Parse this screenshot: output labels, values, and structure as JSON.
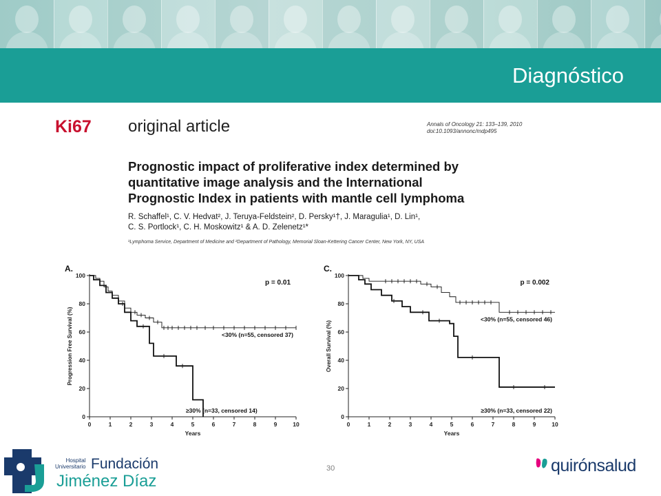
{
  "header": {
    "title": "Diagnóstico"
  },
  "section_label": "Ki67",
  "article": {
    "kicker": "original article",
    "journal_line1": "Annals of Oncology 21: 133–139, 2010",
    "journal_line2": "doi:10.1093/annonc/mdp495",
    "title_lines": [
      "Prognostic impact of proliferative index determined by",
      "quantitative image analysis and the International",
      "Prognostic Index in patients with mantle cell lymphoma"
    ],
    "authors_line1": "R. Schaffel¹, C. V. Hedvat², J. Teruya-Feldstein², D. Persky¹†, J. Maragulia¹, D. Lin¹,",
    "authors_line2": "C. S. Portlock¹, C. H. Moskowitz¹ & A. D. Zelenetz¹*",
    "affiliation": "¹Lymphoma Service, Department of Medicine and ²Department of Pathology, Memorial Sloan-Kettering Cancer Center, New York, NY, USA"
  },
  "chart_data": [
    {
      "type": "line",
      "panel": "A.",
      "p_value": "p = 0.01",
      "xlabel": "Years",
      "ylabel": "Progression Free Survival (%)",
      "xlim": [
        0,
        10
      ],
      "ylim": [
        0,
        100
      ],
      "xticks": [
        "0",
        "1",
        "2",
        "3",
        "4",
        "5",
        "6",
        "7",
        "8",
        "9",
        "10"
      ],
      "yticks": [
        "0",
        "20",
        "40",
        "60",
        "80",
        "100"
      ],
      "series": [
        {
          "name": "<30% (n=55, censored 37)",
          "style": "thin",
          "x": [
            0,
            0.3,
            0.5,
            0.7,
            0.9,
            1.1,
            1.4,
            1.7,
            2.0,
            2.3,
            2.7,
            3.1,
            3.5,
            10
          ],
          "y": [
            100,
            98,
            96,
            92,
            89,
            86,
            82,
            77,
            74,
            72,
            70,
            67,
            63,
            63
          ],
          "censor_x": [
            2.2,
            2.5,
            2.9,
            3.3,
            3.6,
            3.8,
            4.0,
            4.3,
            4.6,
            4.9,
            5.2,
            5.6,
            6.0,
            6.5,
            7.0,
            7.5,
            8.0,
            8.5,
            9.0,
            9.5,
            10.0
          ]
        },
        {
          "name": "≥30% (n=33, censored 14)",
          "style": "thick",
          "x": [
            0,
            0.2,
            0.5,
            0.8,
            1.1,
            1.4,
            1.7,
            2.0,
            2.3,
            2.9,
            3.1,
            4.2,
            5.0,
            5.5
          ],
          "y": [
            100,
            97,
            93,
            88,
            84,
            80,
            74,
            68,
            64,
            52,
            43,
            36,
            12,
            0
          ],
          "censor_x": [
            1.6,
            2.6,
            3.6,
            4.5
          ]
        }
      ]
    },
    {
      "type": "line",
      "panel": "C.",
      "p_value": "p = 0.002",
      "xlabel": "Years",
      "ylabel": "Overall Survival (%)",
      "xlim": [
        0,
        10
      ],
      "ylim": [
        0,
        100
      ],
      "xticks": [
        "0",
        "1",
        "2",
        "3",
        "4",
        "5",
        "6",
        "7",
        "8",
        "9",
        "10"
      ],
      "yticks": [
        "0",
        "20",
        "40",
        "60",
        "80",
        "100"
      ],
      "series": [
        {
          "name": "<30% (n=55, censored 46)",
          "style": "thin",
          "x": [
            0,
            0.7,
            1.0,
            1.4,
            3.5,
            4.0,
            4.5,
            4.9,
            5.2,
            7.0,
            7.3,
            10
          ],
          "y": [
            100,
            98,
            96,
            96,
            94,
            92,
            88,
            85,
            81,
            81,
            74,
            74
          ],
          "censor_x": [
            1.8,
            2.1,
            2.4,
            2.7,
            3.0,
            3.3,
            3.8,
            4.3,
            5.4,
            5.7,
            6.0,
            6.3,
            6.6,
            6.9,
            7.8,
            8.2,
            8.6,
            9.0,
            9.4,
            9.8
          ]
        },
        {
          "name": "≥30% (n=33, censored 22)",
          "style": "thick",
          "x": [
            0,
            0.5,
            0.8,
            1.1,
            1.6,
            2.1,
            2.6,
            3.0,
            3.4,
            3.9,
            4.9,
            5.1,
            5.3,
            7.3,
            10
          ],
          "y": [
            100,
            97,
            94,
            90,
            86,
            82,
            78,
            74,
            74,
            68,
            66,
            57,
            42,
            21,
            21
          ],
          "censor_x": [
            2.2,
            3.6,
            4.4,
            6.0,
            8.0,
            9.5
          ]
        }
      ]
    }
  ],
  "page_number": "30",
  "logo_left": {
    "hospital_line1": "Hospital",
    "hospital_line2": "Universitario",
    "name_line1": "Fundación",
    "name_line2": "Jiménez Díaz",
    "primary_color": "#1a3a6b",
    "accent_color": "#1a9e96"
  },
  "logo_right": {
    "text": "quirónsalud",
    "primary_color": "#1a3a6b",
    "accent_color": "#1a9e96",
    "heart_color": "#e6007e"
  }
}
